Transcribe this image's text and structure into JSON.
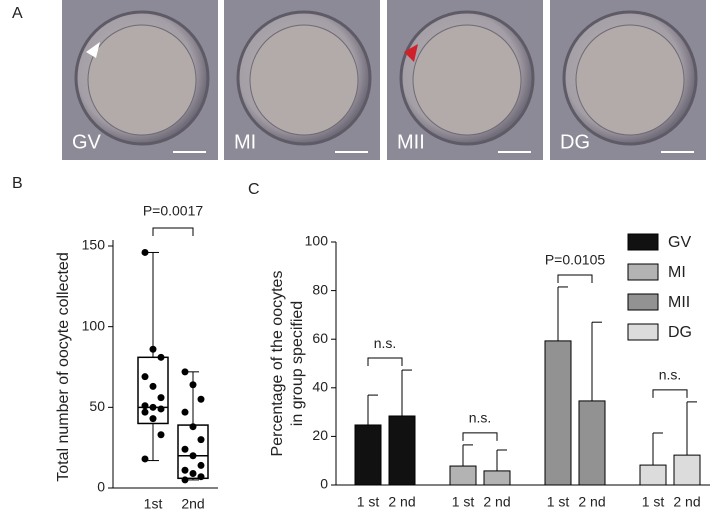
{
  "panel_labels": [
    "A",
    "B",
    "C"
  ],
  "micrographs": [
    "GV",
    "MI",
    "MII",
    "DG"
  ],
  "chart_data": [
    {
      "type": "box",
      "ylabel": "Total number of oocyte collected",
      "categories": [
        "1st",
        "2nd"
      ],
      "boxes": [
        {
          "min": 17,
          "q1": 40,
          "median": 50,
          "q3": 81,
          "max": 146,
          "points": [
            146,
            86,
            81,
            69,
            63,
            56,
            51,
            50,
            49,
            47,
            43,
            33,
            18
          ]
        },
        {
          "min": 5,
          "q1": 6,
          "median": 20,
          "q3": 39,
          "max": 72,
          "points": [
            72,
            64,
            55,
            47,
            38,
            30,
            24,
            20,
            14,
            11,
            9,
            7,
            5
          ]
        }
      ],
      "ylim": [
        0,
        150
      ],
      "yticks": [
        0,
        50,
        100,
        150
      ],
      "annotation": "P=0.0017"
    },
    {
      "type": "bar",
      "ylabel": [
        "Percentage of the oocytes",
        "in group specified"
      ],
      "bar_labels": [
        "1 st",
        "2 nd"
      ],
      "series": [
        {
          "name": "GV",
          "color": "#111111",
          "values": [
            24.7,
            28.4
          ],
          "errors": [
            12.3,
            18.9
          ],
          "annotation": "n.s."
        },
        {
          "name": "MI",
          "color": "#b3b3b3",
          "values": [
            7.8,
            5.8
          ],
          "errors": [
            8.7,
            8.6
          ],
          "annotation": "n.s."
        },
        {
          "name": "MII",
          "color": "#929292",
          "values": [
            59.3,
            34.6
          ],
          "errors": [
            22.2,
            32.4
          ],
          "annotation": "P=0.0105"
        },
        {
          "name": "DG",
          "color": "#dcdcdc",
          "values": [
            8.2,
            12.3
          ],
          "errors": [
            13.2,
            21.9
          ],
          "annotation": "n.s."
        }
      ],
      "ylim": [
        0,
        100
      ],
      "yticks": [
        0,
        20,
        40,
        60,
        80,
        100
      ]
    }
  ]
}
